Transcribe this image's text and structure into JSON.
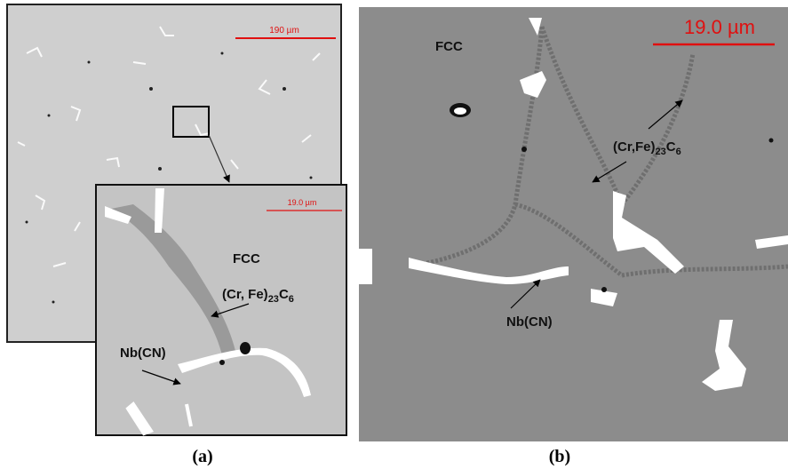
{
  "panel_a": {
    "scale_bar": "190 µm",
    "caption": "(a)",
    "inset": {
      "scale_bar": "19.0 µm",
      "fcc": "FCC",
      "carbide": [
        "(Cr, Fe)",
        "23",
        "C",
        "6"
      ],
      "nbcn": "Nb(CN)"
    }
  },
  "panel_b": {
    "scale_bar": "19.0 µm",
    "caption": "(b)",
    "fcc": "FCC",
    "carbide": [
      "(Cr,Fe)",
      "23",
      "C",
      "6"
    ],
    "nbcn": "Nb(CN)"
  }
}
